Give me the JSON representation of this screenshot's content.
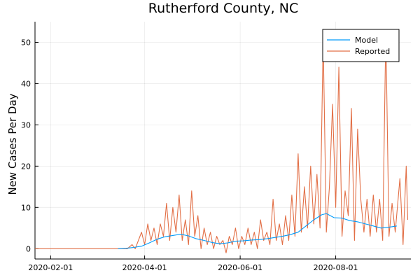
{
  "chart_data": {
    "type": "line",
    "title": "Rutherford County, NC",
    "xlabel": "",
    "ylabel": "New Cases Per Day",
    "x_axis": {
      "type": "date",
      "range": [
        "2020-01-22",
        "2020-09-18"
      ],
      "ticks": [
        "2020-02-01",
        "2020-04-01",
        "2020-06-01",
        "2020-08-01"
      ]
    },
    "ylim": [
      -2.5,
      55
    ],
    "yticks": [
      0,
      10,
      20,
      30,
      40,
      50
    ],
    "grid": true,
    "legend": "top-right",
    "colors": {
      "Model": "#009AFA",
      "Reported": "#E26F46"
    },
    "series": [
      {
        "name": "Model",
        "points": [
          [
            "2020-03-15",
            0.0
          ],
          [
            "2020-03-20",
            0.1
          ],
          [
            "2020-03-25",
            0.3
          ],
          [
            "2020-03-30",
            0.6
          ],
          [
            "2020-04-04",
            1.4
          ],
          [
            "2020-04-09",
            2.3
          ],
          [
            "2020-04-14",
            2.9
          ],
          [
            "2020-04-19",
            3.2
          ],
          [
            "2020-04-24",
            3.5
          ],
          [
            "2020-04-29",
            3.1
          ],
          [
            "2020-05-04",
            2.4
          ],
          [
            "2020-05-09",
            2.0
          ],
          [
            "2020-05-14",
            1.5
          ],
          [
            "2020-05-19",
            1.2
          ],
          [
            "2020-05-24",
            1.4
          ],
          [
            "2020-05-29",
            1.8
          ],
          [
            "2020-06-03",
            1.9
          ],
          [
            "2020-06-08",
            2.1
          ],
          [
            "2020-06-13",
            2.2
          ],
          [
            "2020-06-18",
            2.4
          ],
          [
            "2020-06-23",
            2.7
          ],
          [
            "2020-06-28",
            3.0
          ],
          [
            "2020-07-03",
            3.4
          ],
          [
            "2020-07-08",
            4.0
          ],
          [
            "2020-07-13",
            5.5
          ],
          [
            "2020-07-18",
            7.0
          ],
          [
            "2020-07-23",
            8.2
          ],
          [
            "2020-07-26",
            8.5
          ],
          [
            "2020-07-31",
            7.5
          ],
          [
            "2020-08-05",
            7.4
          ],
          [
            "2020-08-10",
            6.8
          ],
          [
            "2020-08-15",
            6.5
          ],
          [
            "2020-08-20",
            6.0
          ],
          [
            "2020-08-25",
            5.5
          ],
          [
            "2020-08-30",
            5.0
          ],
          [
            "2020-09-04",
            5.2
          ],
          [
            "2020-09-09",
            5.5
          ]
        ]
      },
      {
        "name": "Reported",
        "points": [
          [
            "2020-01-22",
            0
          ],
          [
            "2020-03-18",
            0
          ],
          [
            "2020-03-21",
            0
          ],
          [
            "2020-03-24",
            1
          ],
          [
            "2020-03-26",
            0
          ],
          [
            "2020-03-28",
            2
          ],
          [
            "2020-03-30",
            4
          ],
          [
            "2020-04-01",
            1
          ],
          [
            "2020-04-03",
            6
          ],
          [
            "2020-04-05",
            2
          ],
          [
            "2020-04-07",
            5
          ],
          [
            "2020-04-09",
            1
          ],
          [
            "2020-04-11",
            6
          ],
          [
            "2020-04-13",
            3
          ],
          [
            "2020-04-15",
            11
          ],
          [
            "2020-04-17",
            2
          ],
          [
            "2020-04-19",
            10
          ],
          [
            "2020-04-21",
            4
          ],
          [
            "2020-04-23",
            13
          ],
          [
            "2020-04-25",
            2
          ],
          [
            "2020-04-27",
            7
          ],
          [
            "2020-04-29",
            1
          ],
          [
            "2020-05-01",
            14
          ],
          [
            "2020-05-03",
            3
          ],
          [
            "2020-05-05",
            8
          ],
          [
            "2020-05-07",
            0
          ],
          [
            "2020-05-09",
            5
          ],
          [
            "2020-05-11",
            1
          ],
          [
            "2020-05-13",
            4
          ],
          [
            "2020-05-15",
            0
          ],
          [
            "2020-05-17",
            3
          ],
          [
            "2020-05-19",
            1
          ],
          [
            "2020-05-21",
            2
          ],
          [
            "2020-05-23",
            -1
          ],
          [
            "2020-05-25",
            3
          ],
          [
            "2020-05-27",
            1
          ],
          [
            "2020-05-29",
            5
          ],
          [
            "2020-05-31",
            0
          ],
          [
            "2020-06-02",
            3
          ],
          [
            "2020-06-04",
            1
          ],
          [
            "2020-06-06",
            5
          ],
          [
            "2020-06-08",
            1
          ],
          [
            "2020-06-10",
            4
          ],
          [
            "2020-06-12",
            0
          ],
          [
            "2020-06-14",
            7
          ],
          [
            "2020-06-16",
            2
          ],
          [
            "2020-06-18",
            4
          ],
          [
            "2020-06-20",
            1
          ],
          [
            "2020-06-22",
            12
          ],
          [
            "2020-06-24",
            2
          ],
          [
            "2020-06-26",
            6
          ],
          [
            "2020-06-28",
            1
          ],
          [
            "2020-06-30",
            8
          ],
          [
            "2020-07-02",
            2
          ],
          [
            "2020-07-04",
            13
          ],
          [
            "2020-07-06",
            3
          ],
          [
            "2020-07-08",
            23
          ],
          [
            "2020-07-10",
            4
          ],
          [
            "2020-07-12",
            15
          ],
          [
            "2020-07-14",
            5
          ],
          [
            "2020-07-16",
            20
          ],
          [
            "2020-07-18",
            6
          ],
          [
            "2020-07-20",
            18
          ],
          [
            "2020-07-22",
            5
          ],
          [
            "2020-07-24",
            51
          ],
          [
            "2020-07-26",
            4
          ],
          [
            "2020-07-28",
            15
          ],
          [
            "2020-07-30",
            35
          ],
          [
            "2020-08-01",
            10
          ],
          [
            "2020-08-03",
            44
          ],
          [
            "2020-08-05",
            3
          ],
          [
            "2020-08-07",
            14
          ],
          [
            "2020-08-09",
            8
          ],
          [
            "2020-08-11",
            34
          ],
          [
            "2020-08-13",
            2
          ],
          [
            "2020-08-15",
            29
          ],
          [
            "2020-08-17",
            12
          ],
          [
            "2020-08-19",
            4
          ],
          [
            "2020-08-21",
            12
          ],
          [
            "2020-08-23",
            3
          ],
          [
            "2020-08-25",
            13
          ],
          [
            "2020-08-27",
            4
          ],
          [
            "2020-08-29",
            12
          ],
          [
            "2020-08-31",
            2
          ],
          [
            "2020-09-02",
            53
          ],
          [
            "2020-09-04",
            3
          ],
          [
            "2020-09-06",
            11
          ],
          [
            "2020-09-08",
            4
          ],
          [
            "2020-09-11",
            17
          ],
          [
            "2020-09-13",
            1
          ],
          [
            "2020-09-15",
            20
          ],
          [
            "2020-09-16",
            7
          ]
        ]
      }
    ]
  }
}
